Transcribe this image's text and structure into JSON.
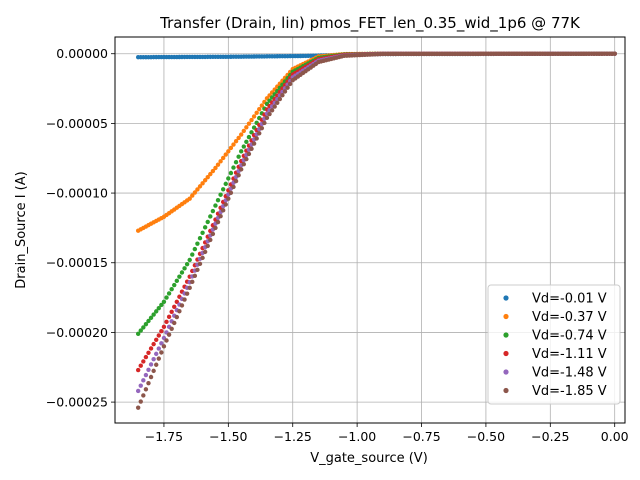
{
  "chart_data": {
    "type": "scatter",
    "title": "Transfer (Drain, lin) pmos_FET_len_0.35_wid_1p6 @ 77K",
    "xlabel": "V_gate_source (V)",
    "ylabel": "Drain_Source I (A)",
    "xlim": [
      -1.94,
      0.04
    ],
    "ylim": [
      -0.000265,
      1.2e-05
    ],
    "xticks": [
      -1.75,
      -1.5,
      -1.25,
      -1.0,
      -0.75,
      -0.5,
      -0.25,
      0.0
    ],
    "xtick_labels": [
      "−1.75",
      "−1.50",
      "−1.25",
      "−1.00",
      "−0.75",
      "−0.50",
      "−0.25",
      "0.00"
    ],
    "yticks": [
      0.0,
      -5e-05,
      -0.0001,
      -0.00015,
      -0.0002,
      -0.00025
    ],
    "ytick_labels": [
      "0.00000",
      "−0.00005",
      "−0.00010",
      "−0.00015",
      "−0.00020",
      "−0.00025"
    ],
    "grid": true,
    "legend_position": "lower-right",
    "x_range": [
      -1.85,
      0.0
    ],
    "points_per_series": 186,
    "series": [
      {
        "name": "Vd=-0.01 V",
        "color": "#1f77b4",
        "keypoints": [
          [
            -1.85,
            -2.5e-06
          ],
          [
            -1.5,
            -2.2e-06
          ],
          [
            -1.2,
            -1.6e-06
          ],
          [
            -1.05,
            -8e-07
          ],
          [
            -0.9,
            -2e-07
          ],
          [
            0.0,
            0.0
          ]
        ]
      },
      {
        "name": "Vd=-0.37 V",
        "color": "#ff7f0e",
        "keypoints": [
          [
            -1.85,
            -0.000127
          ],
          [
            -1.75,
            -0.000117
          ],
          [
            -1.65,
            -0.000104
          ],
          [
            -1.55,
            -8.2e-05
          ],
          [
            -1.45,
            -5.8e-05
          ],
          [
            -1.35,
            -3.2e-05
          ],
          [
            -1.25,
            -1.1e-05
          ],
          [
            -1.15,
            -2e-06
          ],
          [
            -1.05,
            -3e-07
          ],
          [
            -0.9,
            0.0
          ],
          [
            0.0,
            0.0
          ]
        ]
      },
      {
        "name": "Vd=-0.74 V",
        "color": "#2ca02c",
        "keypoints": [
          [
            -1.85,
            -0.000201
          ],
          [
            -1.75,
            -0.000178
          ],
          [
            -1.65,
            -0.000148
          ],
          [
            -1.55,
            -0.000109
          ],
          [
            -1.45,
            -7e-05
          ],
          [
            -1.35,
            -3.6e-05
          ],
          [
            -1.25,
            -1.3e-05
          ],
          [
            -1.15,
            -3e-06
          ],
          [
            -1.05,
            -5e-07
          ],
          [
            -0.9,
            0.0
          ],
          [
            0.0,
            0.0
          ]
        ]
      },
      {
        "name": "Vd=-1.11 V",
        "color": "#d62728",
        "keypoints": [
          [
            -1.85,
            -0.000227
          ],
          [
            -1.75,
            -0.000196
          ],
          [
            -1.65,
            -0.00016
          ],
          [
            -1.55,
            -0.000119
          ],
          [
            -1.45,
            -7.7e-05
          ],
          [
            -1.35,
            -4e-05
          ],
          [
            -1.25,
            -1.5e-05
          ],
          [
            -1.15,
            -4e-06
          ],
          [
            -1.05,
            -8e-07
          ],
          [
            -0.9,
            0.0
          ],
          [
            0.0,
            0.0
          ]
        ]
      },
      {
        "name": "Vd=-1.48 V",
        "color": "#9467bd",
        "keypoints": [
          [
            -1.85,
            -0.000242
          ],
          [
            -1.75,
            -0.000204
          ],
          [
            -1.65,
            -0.000164
          ],
          [
            -1.55,
            -0.000122
          ],
          [
            -1.45,
            -8e-05
          ],
          [
            -1.35,
            -4.3e-05
          ],
          [
            -1.25,
            -1.7e-05
          ],
          [
            -1.15,
            -5e-06
          ],
          [
            -1.05,
            -1.2e-06
          ],
          [
            -0.9,
            -1e-07
          ],
          [
            0.0,
            0.0
          ]
        ]
      },
      {
        "name": "Vd=-1.85 V",
        "color": "#8c564b",
        "keypoints": [
          [
            -1.85,
            -0.000254
          ],
          [
            -1.75,
            -0.00021
          ],
          [
            -1.65,
            -0.000168
          ],
          [
            -1.55,
            -0.000125
          ],
          [
            -1.45,
            -8.3e-05
          ],
          [
            -1.35,
            -4.6e-05
          ],
          [
            -1.25,
            -1.9e-05
          ],
          [
            -1.15,
            -6e-06
          ],
          [
            -1.05,
            -1.5e-06
          ],
          [
            -0.9,
            -2e-07
          ],
          [
            0.0,
            0.0
          ]
        ]
      }
    ]
  }
}
